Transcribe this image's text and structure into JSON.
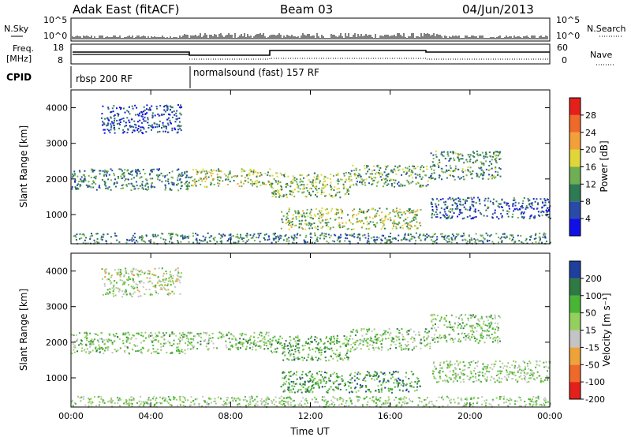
{
  "header": {
    "station": "Adak East (fitACF)",
    "beam": "Beam 03",
    "date": "04/Jun/2013"
  },
  "top_panels": {
    "nsky_label": "N.Sky",
    "nsky_ticks": [
      "10^5",
      "10^0"
    ],
    "nsearch_label": "N.Search",
    "nsearch_ticks": [
      "10^5",
      "10^0"
    ],
    "freq_label_1": "Freq.",
    "freq_label_2": "[MHz]",
    "freq_ticks": [
      "18",
      "8"
    ],
    "nave_label": "Nave",
    "nave_ticks": [
      "60",
      "0"
    ],
    "cpid_label": "CPID",
    "cpid_segments": [
      "rbsp 200 RF",
      "normalsound (fast) 157 RF"
    ]
  },
  "chart_data": [
    {
      "type": "heatmap",
      "title": "",
      "ylabel": "Slant Range [km]",
      "xlabel": "",
      "ylim": [
        180,
        4500
      ],
      "y_ticks": [
        "1000",
        "2000",
        "3000",
        "4000"
      ],
      "x_ticks": [
        "00:00",
        "04:00",
        "08:00",
        "12:00",
        "16:00",
        "20:00",
        "00:00"
      ],
      "colorbar": {
        "label": "Power [dB]",
        "ticks": [
          "4",
          "8",
          "12",
          "16",
          "20",
          "24",
          "28"
        ],
        "colors": [
          "#1010e6",
          "#2a4aa8",
          "#2d7a55",
          "#6fae52",
          "#e0d63a",
          "#f2a13a",
          "#ee6a2a",
          "#e4201c"
        ]
      },
      "bands": [
        {
          "t_start": 0.0,
          "t_end": 6.0,
          "range": [
            1700,
            2300
          ],
          "level": 0.35
        },
        {
          "t_start": 6.0,
          "t_end": 10.0,
          "range": [
            1800,
            2300
          ],
          "level": 0.55
        },
        {
          "t_start": 1.5,
          "t_end": 5.5,
          "range": [
            3300,
            4100
          ],
          "level": 0.2
        },
        {
          "t_start": 10.0,
          "t_end": 14.0,
          "range": [
            1500,
            2200
          ],
          "level": 0.5
        },
        {
          "t_start": 10.5,
          "t_end": 17.5,
          "range": [
            600,
            1200
          ],
          "level": 0.55
        },
        {
          "t_start": 14.0,
          "t_end": 18.0,
          "range": [
            1800,
            2400
          ],
          "level": 0.45
        },
        {
          "t_start": 18.0,
          "t_end": 21.5,
          "range": [
            2000,
            2800
          ],
          "level": 0.4
        },
        {
          "t_start": 18.0,
          "t_end": 24.0,
          "range": [
            900,
            1500
          ],
          "level": 0.25
        },
        {
          "t_start": 0.0,
          "t_end": 24.0,
          "range": [
            200,
            500
          ],
          "level": 0.35
        }
      ]
    },
    {
      "type": "heatmap",
      "title": "",
      "ylabel": "Slant Range [km]",
      "xlabel": "Time UT",
      "ylim": [
        180,
        4500
      ],
      "y_ticks": [
        "1000",
        "2000",
        "3000",
        "4000"
      ],
      "x_ticks": [
        "00:00",
        "04:00",
        "08:00",
        "12:00",
        "16:00",
        "20:00",
        "00:00"
      ],
      "colorbar": {
        "label": "Velocity [m s⁻¹]",
        "ticks": [
          "200",
          "100",
          "50",
          "15",
          "-15",
          "-50",
          "-100",
          "-200"
        ],
        "colors": [
          "#1f3f9c",
          "#2f7a43",
          "#49b536",
          "#95cf5e",
          "#c4c4c4",
          "#eea23a",
          "#ee6a2a",
          "#e4201c"
        ]
      },
      "bands": [
        {
          "t_start": 0.0,
          "t_end": 6.0,
          "range": [
            1700,
            2300
          ],
          "level": 0.45
        },
        {
          "t_start": 6.0,
          "t_end": 10.0,
          "range": [
            1800,
            2300
          ],
          "level": 0.45
        },
        {
          "t_start": 1.5,
          "t_end": 5.5,
          "range": [
            3300,
            4100
          ],
          "level": 0.55
        },
        {
          "t_start": 10.0,
          "t_end": 14.0,
          "range": [
            1500,
            2200
          ],
          "level": 0.35
        },
        {
          "t_start": 10.5,
          "t_end": 17.5,
          "range": [
            600,
            1200
          ],
          "level": 0.3
        },
        {
          "t_start": 14.0,
          "t_end": 18.0,
          "range": [
            1800,
            2400
          ],
          "level": 0.45
        },
        {
          "t_start": 18.0,
          "t_end": 21.5,
          "range": [
            2000,
            2800
          ],
          "level": 0.45
        },
        {
          "t_start": 18.0,
          "t_end": 24.0,
          "range": [
            900,
            1500
          ],
          "level": 0.5
        },
        {
          "t_start": 0.0,
          "t_end": 24.0,
          "range": [
            200,
            500
          ],
          "level": 0.5
        }
      ]
    }
  ]
}
